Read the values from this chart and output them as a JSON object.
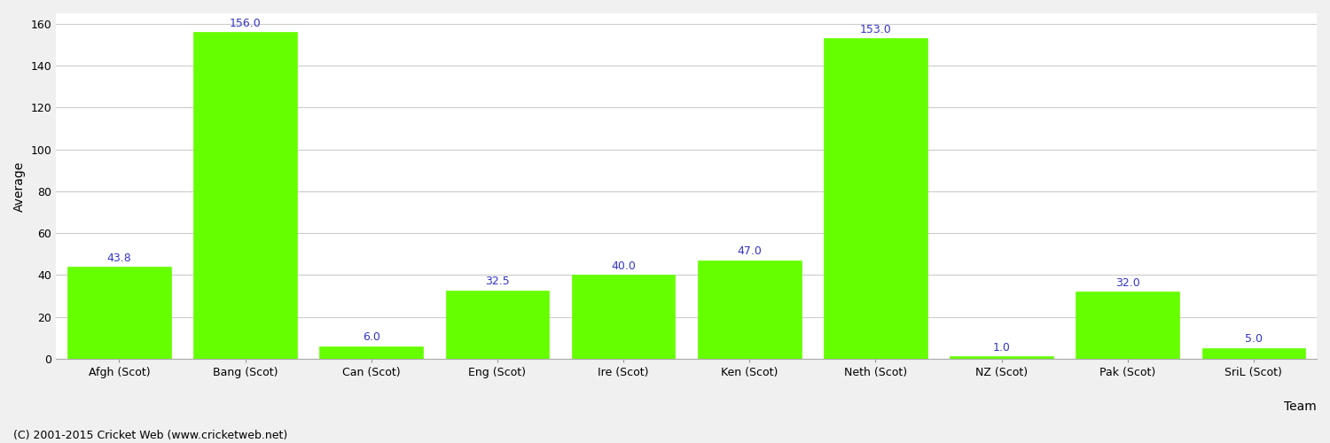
{
  "categories": [
    "Afgh (Scot)",
    "Bang (Scot)",
    "Can (Scot)",
    "Eng (Scot)",
    "Ire (Scot)",
    "Ken (Scot)",
    "Neth (Scot)",
    "NZ (Scot)",
    "Pak (Scot)",
    "SriL (Scot)"
  ],
  "values": [
    43.8,
    156.0,
    6.0,
    32.5,
    40.0,
    47.0,
    153.0,
    1.0,
    32.0,
    5.0
  ],
  "bar_color": "#66ff00",
  "bar_edge_color": "#66ff00",
  "label_color": "#3333cc",
  "xlabel": "Team",
  "ylabel": "Average",
  "ylim": [
    0,
    165
  ],
  "yticks": [
    0,
    20,
    40,
    60,
    80,
    100,
    120,
    140,
    160
  ],
  "grid_color": "#cccccc",
  "background_color": "#f0f0f0",
  "plot_bg_color": "#ffffff",
  "footer": "(C) 2001-2015 Cricket Web (www.cricketweb.net)",
  "label_fontsize": 9,
  "axis_label_fontsize": 10,
  "tick_fontsize": 9,
  "footer_fontsize": 9,
  "bar_width": 0.82
}
